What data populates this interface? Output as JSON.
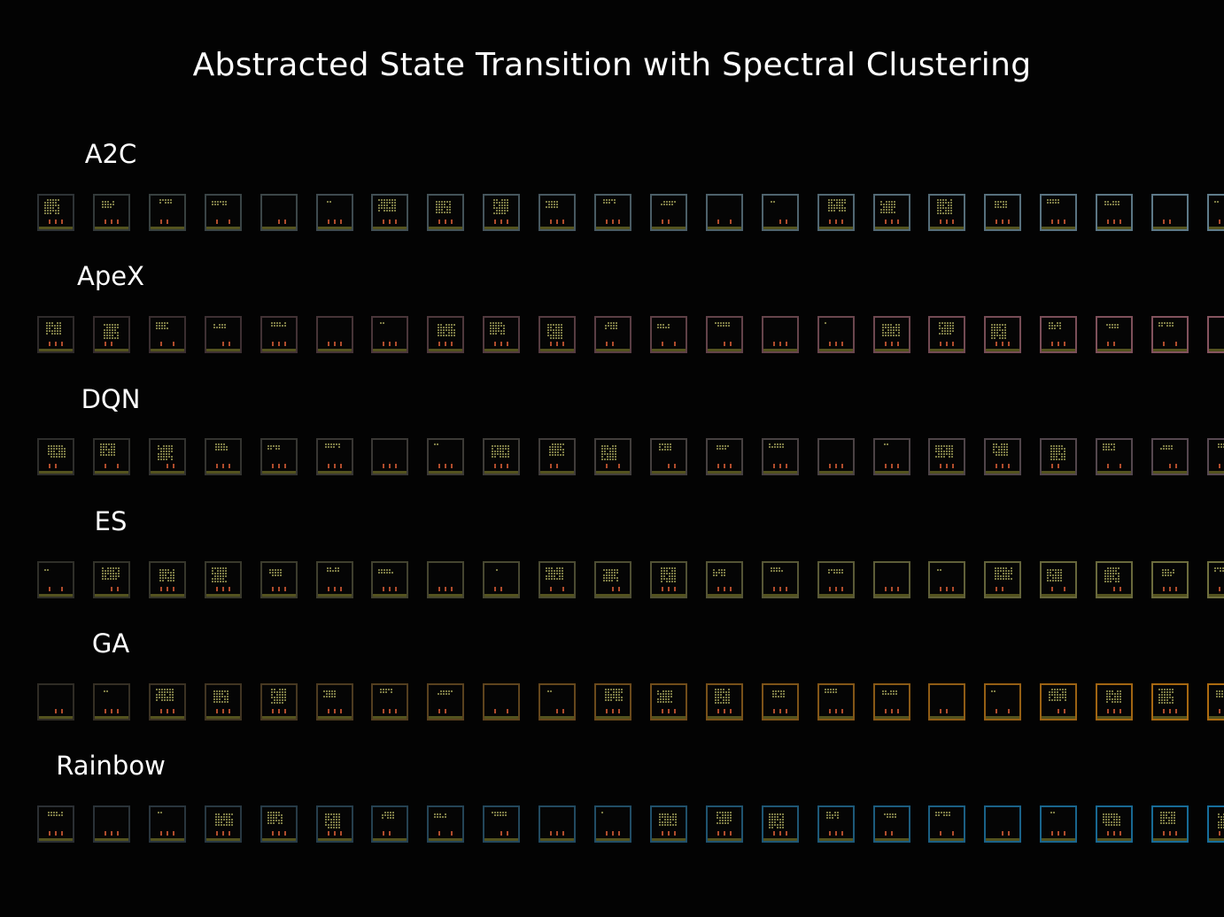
{
  "title": "Abstracted State Transition with Spectral Clustering",
  "rows": [
    {
      "label": "A2C",
      "frame_count": 23,
      "frame_colors": [
        "#2e3336",
        "#333a3a",
        "#37403f",
        "#3a4446",
        "#3c4648",
        "#3e4a4f",
        "#414f54",
        "#435258",
        "#45555c",
        "#475860",
        "#495b63",
        "#4b5e67",
        "#4d616b",
        "#4f646e",
        "#516772",
        "#536a76",
        "#556d79",
        "#57707d",
        "#597381",
        "#5b7684",
        "#5d7988",
        "#5f7c8b",
        "#617f8f"
      ]
    },
    {
      "label": "ApeX",
      "frame_count": 23,
      "frame_colors": [
        "#2f2b2b",
        "#352c2d",
        "#3a2e30",
        "#3e3033",
        "#423235",
        "#463437",
        "#4a363a",
        "#4e383c",
        "#523a3f",
        "#563c41",
        "#5a3e44",
        "#5e4046",
        "#624249",
        "#66444b",
        "#6a464e",
        "#6e4850",
        "#724a53",
        "#764c55",
        "#7a4e58",
        "#7e505a",
        "#82525d",
        "#86545f",
        "#8a5662"
      ]
    },
    {
      "label": "DQN",
      "frame_count": 23,
      "frame_colors": [
        "#2e2e2c",
        "#30302d",
        "#32322f",
        "#343430",
        "#363632",
        "#383633",
        "#3a3835",
        "#3c3a36",
        "#3e3c38",
        "#403c3a",
        "#423e3c",
        "#443f3e",
        "#464040",
        "#484142",
        "#4a4244",
        "#4c4346",
        "#4e4448",
        "#50454a",
        "#52464c",
        "#54474e",
        "#564850",
        "#584952",
        "#5a4a54"
      ]
    },
    {
      "label": "ES",
      "frame_count": 23,
      "frame_colors": [
        "#2f2f29",
        "#33332a",
        "#36362b",
        "#39392c",
        "#3c3c2d",
        "#3f3f2e",
        "#42422f",
        "#454530",
        "#484831",
        "#4b4b32",
        "#4e4e33",
        "#515134",
        "#545435",
        "#575736",
        "#5a5a37",
        "#5d5d38",
        "#606039",
        "#63633a",
        "#66663b",
        "#69693c",
        "#6c6c3d",
        "#6f6f3e",
        "#72723f"
      ]
    },
    {
      "label": "GA",
      "frame_count": 23,
      "frame_colors": [
        "#2f2c25",
        "#352f24",
        "#3b3223",
        "#413522",
        "#473821",
        "#4d3b20",
        "#533e1f",
        "#59411e",
        "#5f441d",
        "#65471c",
        "#6b4a1b",
        "#714d1a",
        "#775019",
        "#7d5318",
        "#835617",
        "#895916",
        "#8f5c15",
        "#955f14",
        "#9b6213",
        "#a16512",
        "#a76811",
        "#ad6b10",
        "#b36e0f"
      ]
    },
    {
      "label": "Rainbow",
      "frame_count": 23,
      "frame_colors": [
        "#2b2f33",
        "#2a3238",
        "#29353d",
        "#283842",
        "#273b47",
        "#263e4c",
        "#254151",
        "#244456",
        "#23475b",
        "#224a60",
        "#214d65",
        "#20506a",
        "#1f536f",
        "#1e5674",
        "#1d5979",
        "#1c5c7e",
        "#1b5f83",
        "#1a6288",
        "#19658d",
        "#186892",
        "#176b97",
        "#166e9c",
        "#1571a1"
      ]
    }
  ]
}
